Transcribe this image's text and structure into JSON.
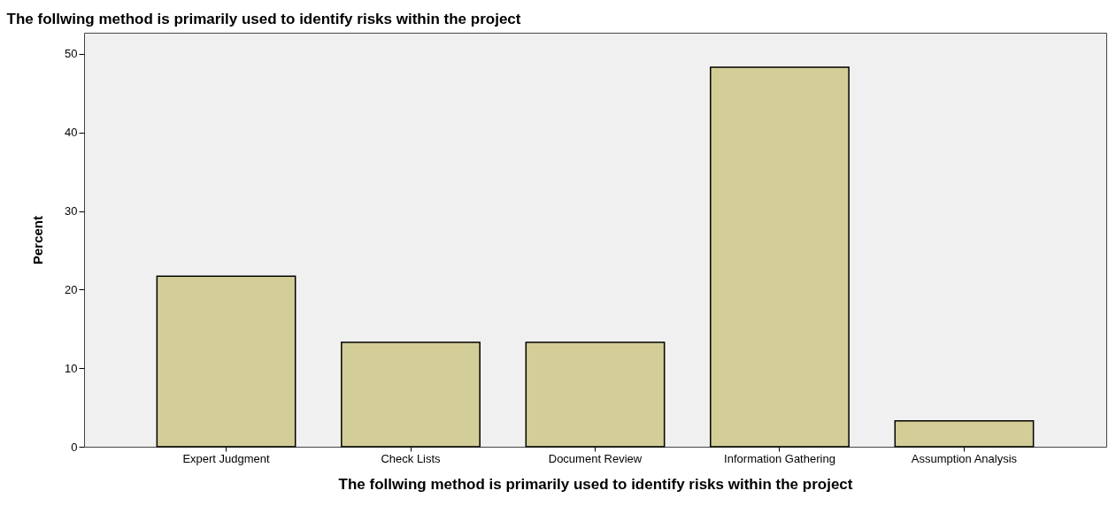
{
  "chart_data": {
    "type": "bar",
    "title": "The follwing method is primarily used to identify risks within the project",
    "xlabel": "The follwing method is primarily used to identify risks within the project",
    "ylabel": "Percent",
    "categories": [
      "Expert Judgment",
      "Check Lists",
      "Document Review",
      "Information Gathering",
      "Assumption Analysis"
    ],
    "values": [
      21.7,
      13.3,
      13.3,
      48.3,
      3.3
    ],
    "color": "#d3ce97",
    "ylim": [
      0,
      52.7
    ],
    "yticks": [
      0,
      10,
      20,
      30,
      40,
      50
    ],
    "grid": false
  }
}
